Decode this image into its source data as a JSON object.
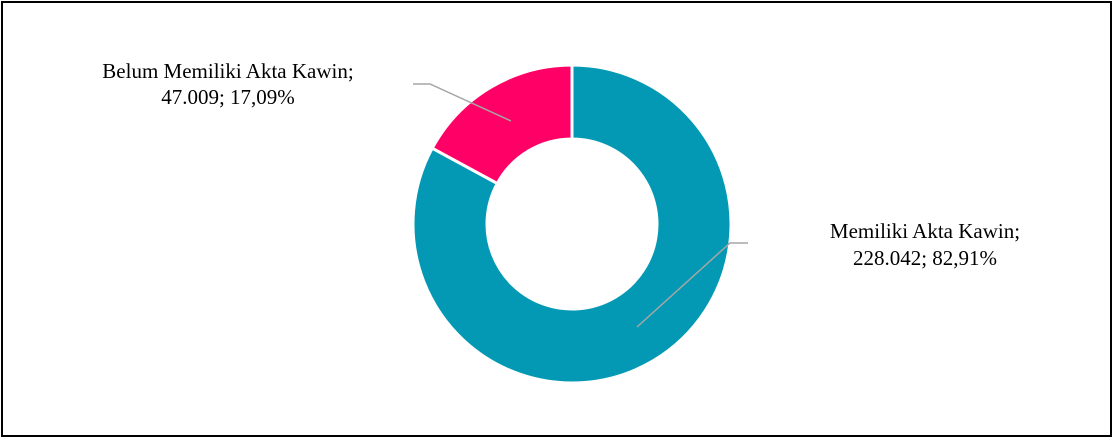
{
  "chart_data": {
    "type": "pie",
    "variant": "donut",
    "title": "",
    "slices": [
      {
        "name": "Memiliki Akta Kawin",
        "value": 228042,
        "label_line1": "Memiliki Akta Kawin;",
        "label_line2": "228.042; 82,91%",
        "color": "#0399B4"
      },
      {
        "name": "Belum Memiliki Akta Kawin",
        "value": 47009,
        "label_line1": "Belum Memiliki Akta Kawin;",
        "label_line2": "47.009; 17,09%",
        "color": "#FF0066"
      }
    ],
    "legend": "none"
  }
}
